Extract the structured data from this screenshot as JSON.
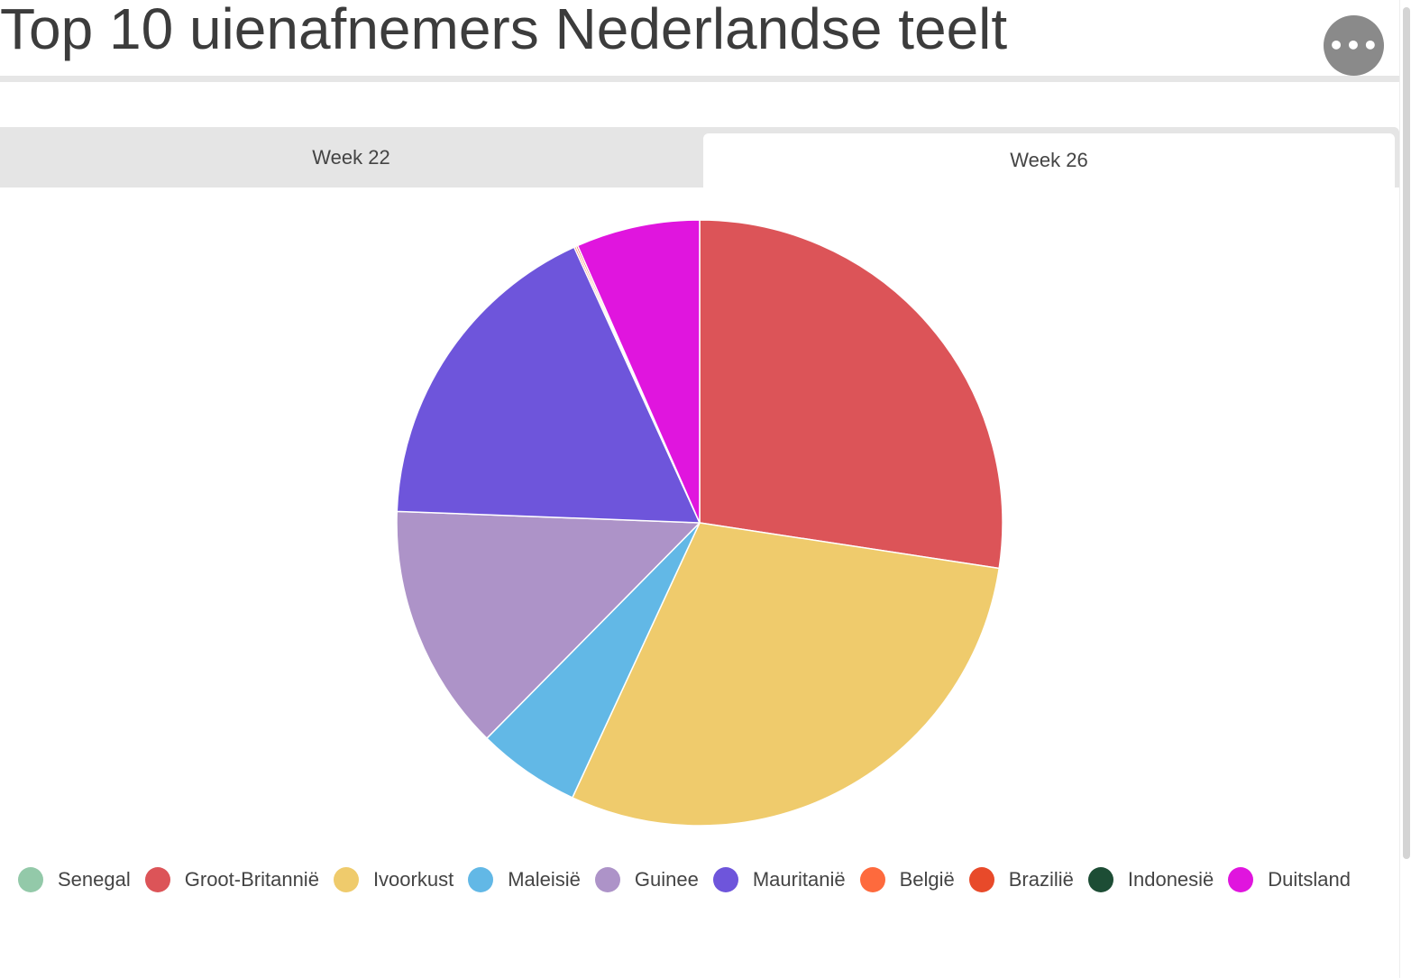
{
  "title": "Top 10 uienafnemers Nederlandse teelt",
  "menu": {
    "icon": "more-horizontal-icon",
    "glyph": "•••"
  },
  "tabs": [
    {
      "label": "Week 22",
      "selected": false
    },
    {
      "label": "Week 26",
      "selected": true
    }
  ],
  "chart_data": {
    "type": "pie",
    "start_angle": "12 o'clock",
    "direction": "clockwise",
    "legend_position": "bottom",
    "slices": [
      {
        "label": "Senegal",
        "value": 0,
        "color": "#93c9a9"
      },
      {
        "label": "Groot-Britannië",
        "value": 27.4,
        "color": "#dc5458"
      },
      {
        "label": "Ivoorkust",
        "value": 29.5,
        "color": "#efcb6c"
      },
      {
        "label": "Maleisië",
        "value": 5.5,
        "color": "#62b8e6"
      },
      {
        "label": "Guinee",
        "value": 13.2,
        "color": "#ad93c8"
      },
      {
        "label": "Mauritanië",
        "value": 17.6,
        "color": "#6e55db"
      },
      {
        "label": "België",
        "value": 0.1,
        "color": "#fe6a3d"
      },
      {
        "label": "Brazilië",
        "value": 0.1,
        "color": "#e84a2a"
      },
      {
        "label": "Indonesië",
        "value": 0,
        "color": "#1d4d35"
      },
      {
        "label": "Duitsland",
        "value": 6.6,
        "color": "#e015de"
      }
    ]
  }
}
